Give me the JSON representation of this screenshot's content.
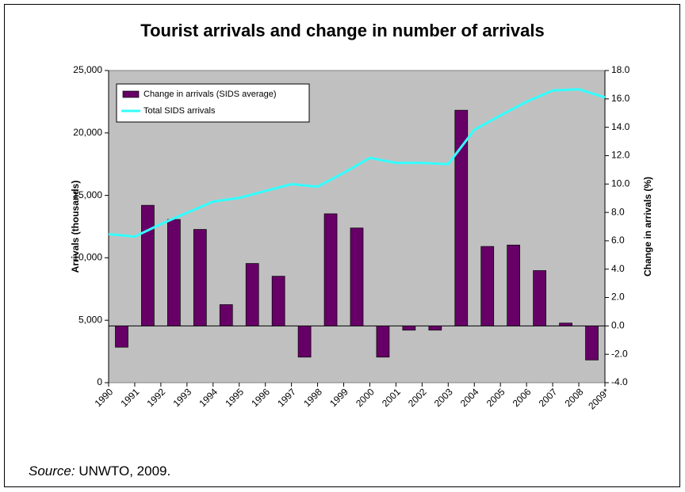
{
  "chart_data": {
    "type": "bar",
    "title": "Tourist arrivals and change in number of arrivals",
    "ylabel": "Arrivals (thousands)",
    "y2label": "Change in arrivals (%)",
    "categories": [
      "1990",
      "1991",
      "1992",
      "1993",
      "1994",
      "1995",
      "1996",
      "1997",
      "1998",
      "1999",
      "2000",
      "2001",
      "2002",
      "2003",
      "2004",
      "2005",
      "2006",
      "2007",
      "2008",
      "2009*"
    ],
    "series": [
      {
        "name": "Change in arrivals (SIDS average)",
        "type": "bar",
        "axis": "y2",
        "color": "#660066",
        "values": [
          null,
          -1.5,
          8.5,
          7.5,
          6.8,
          1.5,
          4.4,
          3.5,
          -2.2,
          7.9,
          6.9,
          -2.2,
          -0.3,
          -0.3,
          15.2,
          5.6,
          5.7,
          3.9,
          0.2,
          -2.4
        ]
      },
      {
        "name": "Total SIDS arrivals",
        "type": "line",
        "axis": "y",
        "color": "#33ffff",
        "values": [
          11900,
          11700,
          12700,
          13600,
          14500,
          14800,
          15350,
          15900,
          15700,
          16800,
          18000,
          17600,
          17600,
          17500,
          20250,
          21400,
          22500,
          23400,
          23500,
          22850
        ]
      }
    ],
    "ylim": [
      0,
      25000
    ],
    "yticks": [
      0,
      {
        "value": 5000,
        "label": "5,000"
      },
      {
        "value": 10000,
        "label": "10,000"
      },
      {
        "value": 15000,
        "label": "15,000"
      },
      {
        "value": 20000,
        "label": "20,000"
      },
      {
        "value": 25000,
        "label": "25,000"
      }
    ],
    "y2lim": [
      -4,
      18
    ],
    "y2ticks": [
      {
        "value": -4,
        "label": "-4.0"
      },
      {
        "value": -2,
        "label": "-2.0"
      },
      {
        "value": 0,
        "label": "0.0"
      },
      {
        "value": 2,
        "label": "2.0"
      },
      {
        "value": 4,
        "label": "4.0"
      },
      {
        "value": 6,
        "label": "6.0"
      },
      {
        "value": 8,
        "label": "8.0"
      },
      {
        "value": 10,
        "label": "10.0"
      },
      {
        "value": 12,
        "label": "12.0"
      },
      {
        "value": 14,
        "label": "14.0"
      },
      {
        "value": 16,
        "label": "16.0"
      },
      {
        "value": 18,
        "label": "18.0"
      }
    ],
    "plot_background": "#c0c0c0",
    "legend": "upper left",
    "source_label": "Source:",
    "source_text": "UNWTO, 2009."
  }
}
